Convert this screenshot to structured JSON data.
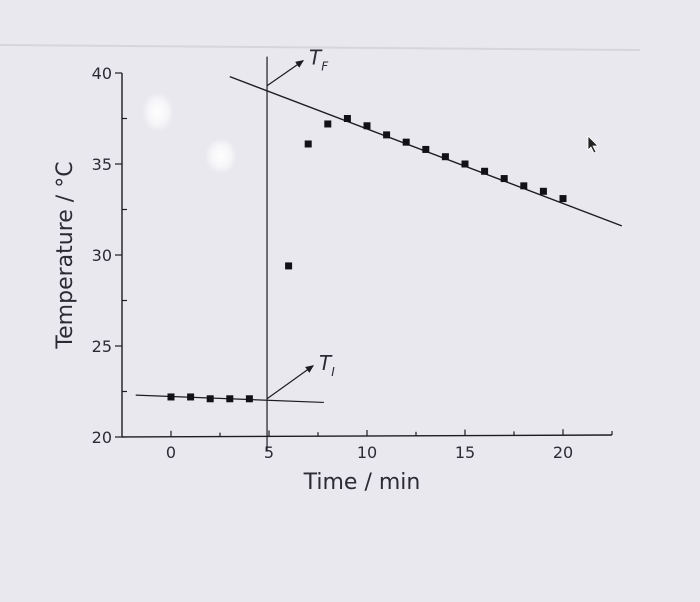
{
  "chart_data": {
    "type": "scatter",
    "xlabel": "Time / min",
    "ylabel": "Temperature / °C",
    "xlim": [
      -2.5,
      22.5
    ],
    "ylim": [
      20,
      40
    ],
    "x_ticks": [
      0,
      5,
      10,
      15,
      20
    ],
    "y_ticks": [
      20,
      25,
      30,
      35,
      40
    ],
    "series": [
      {
        "x": [
          0,
          1,
          2,
          3,
          4,
          6,
          7,
          8,
          9,
          10,
          11,
          12,
          13,
          14,
          15,
          16,
          17,
          18,
          19,
          20
        ],
        "y": [
          22.2,
          22.2,
          22.1,
          22.1,
          22.1,
          29.4,
          36.1,
          37.2,
          37.5,
          37.1,
          36.6,
          36.2,
          35.8,
          35.4,
          35.0,
          34.6,
          34.2,
          33.8,
          33.5,
          33.1
        ]
      }
    ],
    "annotations": {
      "reaction_time": 4.9,
      "initial_fit": {
        "x": [
          -1.8,
          7.8
        ],
        "y": [
          22.3,
          21.9
        ]
      },
      "final_fit": {
        "x": [
          3.0,
          23.0
        ],
        "y": [
          39.8,
          31.6
        ]
      },
      "T_F": {
        "label_main": "T",
        "label_sub": "F",
        "at": [
          4.9,
          39.3
        ]
      },
      "T_I": {
        "label_main": "T",
        "label_sub": "I",
        "at": [
          4.9,
          22.1
        ]
      }
    },
    "grid": false,
    "legend": "none"
  }
}
